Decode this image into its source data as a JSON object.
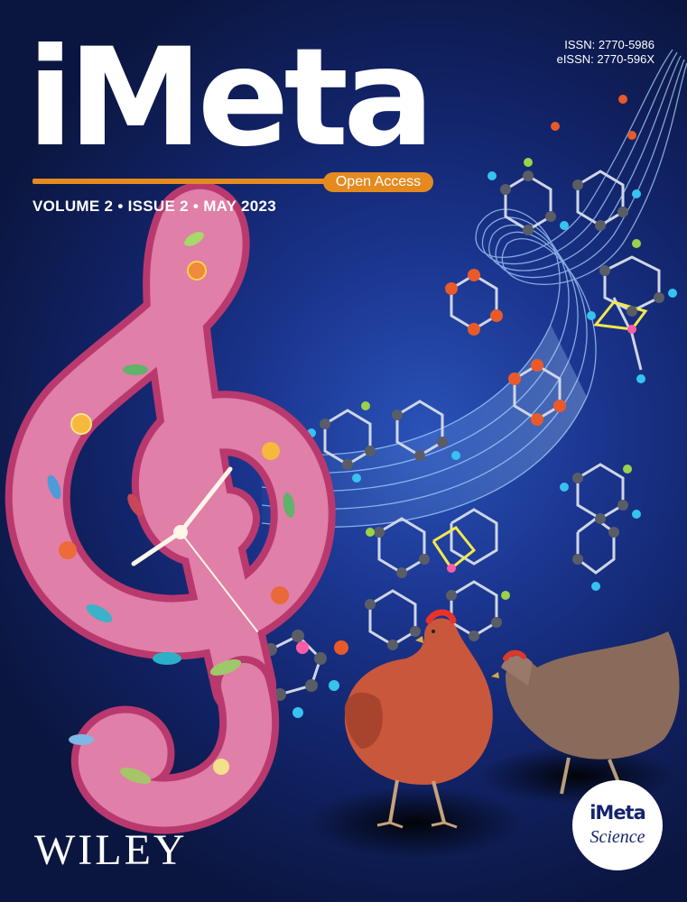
{
  "cover": {
    "journal_title": "iMeta",
    "open_access_label": "Open Access",
    "issue_line": "VOLUME 2 • ISSUE 2 • MAY 2023",
    "issn": "ISSN: 2770-5986",
    "eissn": "eISSN: 2770-596X",
    "publisher": "WILEY",
    "series_badge": {
      "name": "iMeta",
      "tag": "Science"
    }
  },
  "colors": {
    "background": "#12246a",
    "accent_orange": "#e58a1f",
    "clef_pink": "#d85a8c",
    "clef_inner": "#e98cb0",
    "ribbon_blue": "#6fb0ff",
    "hen_red": "#c8563a",
    "hen_brown": "#8a6a58"
  },
  "illustration": {
    "elements": [
      "treble-clef",
      "clock",
      "gut-microbes",
      "molecular-structures",
      "sound-ribbon",
      "hens"
    ]
  }
}
